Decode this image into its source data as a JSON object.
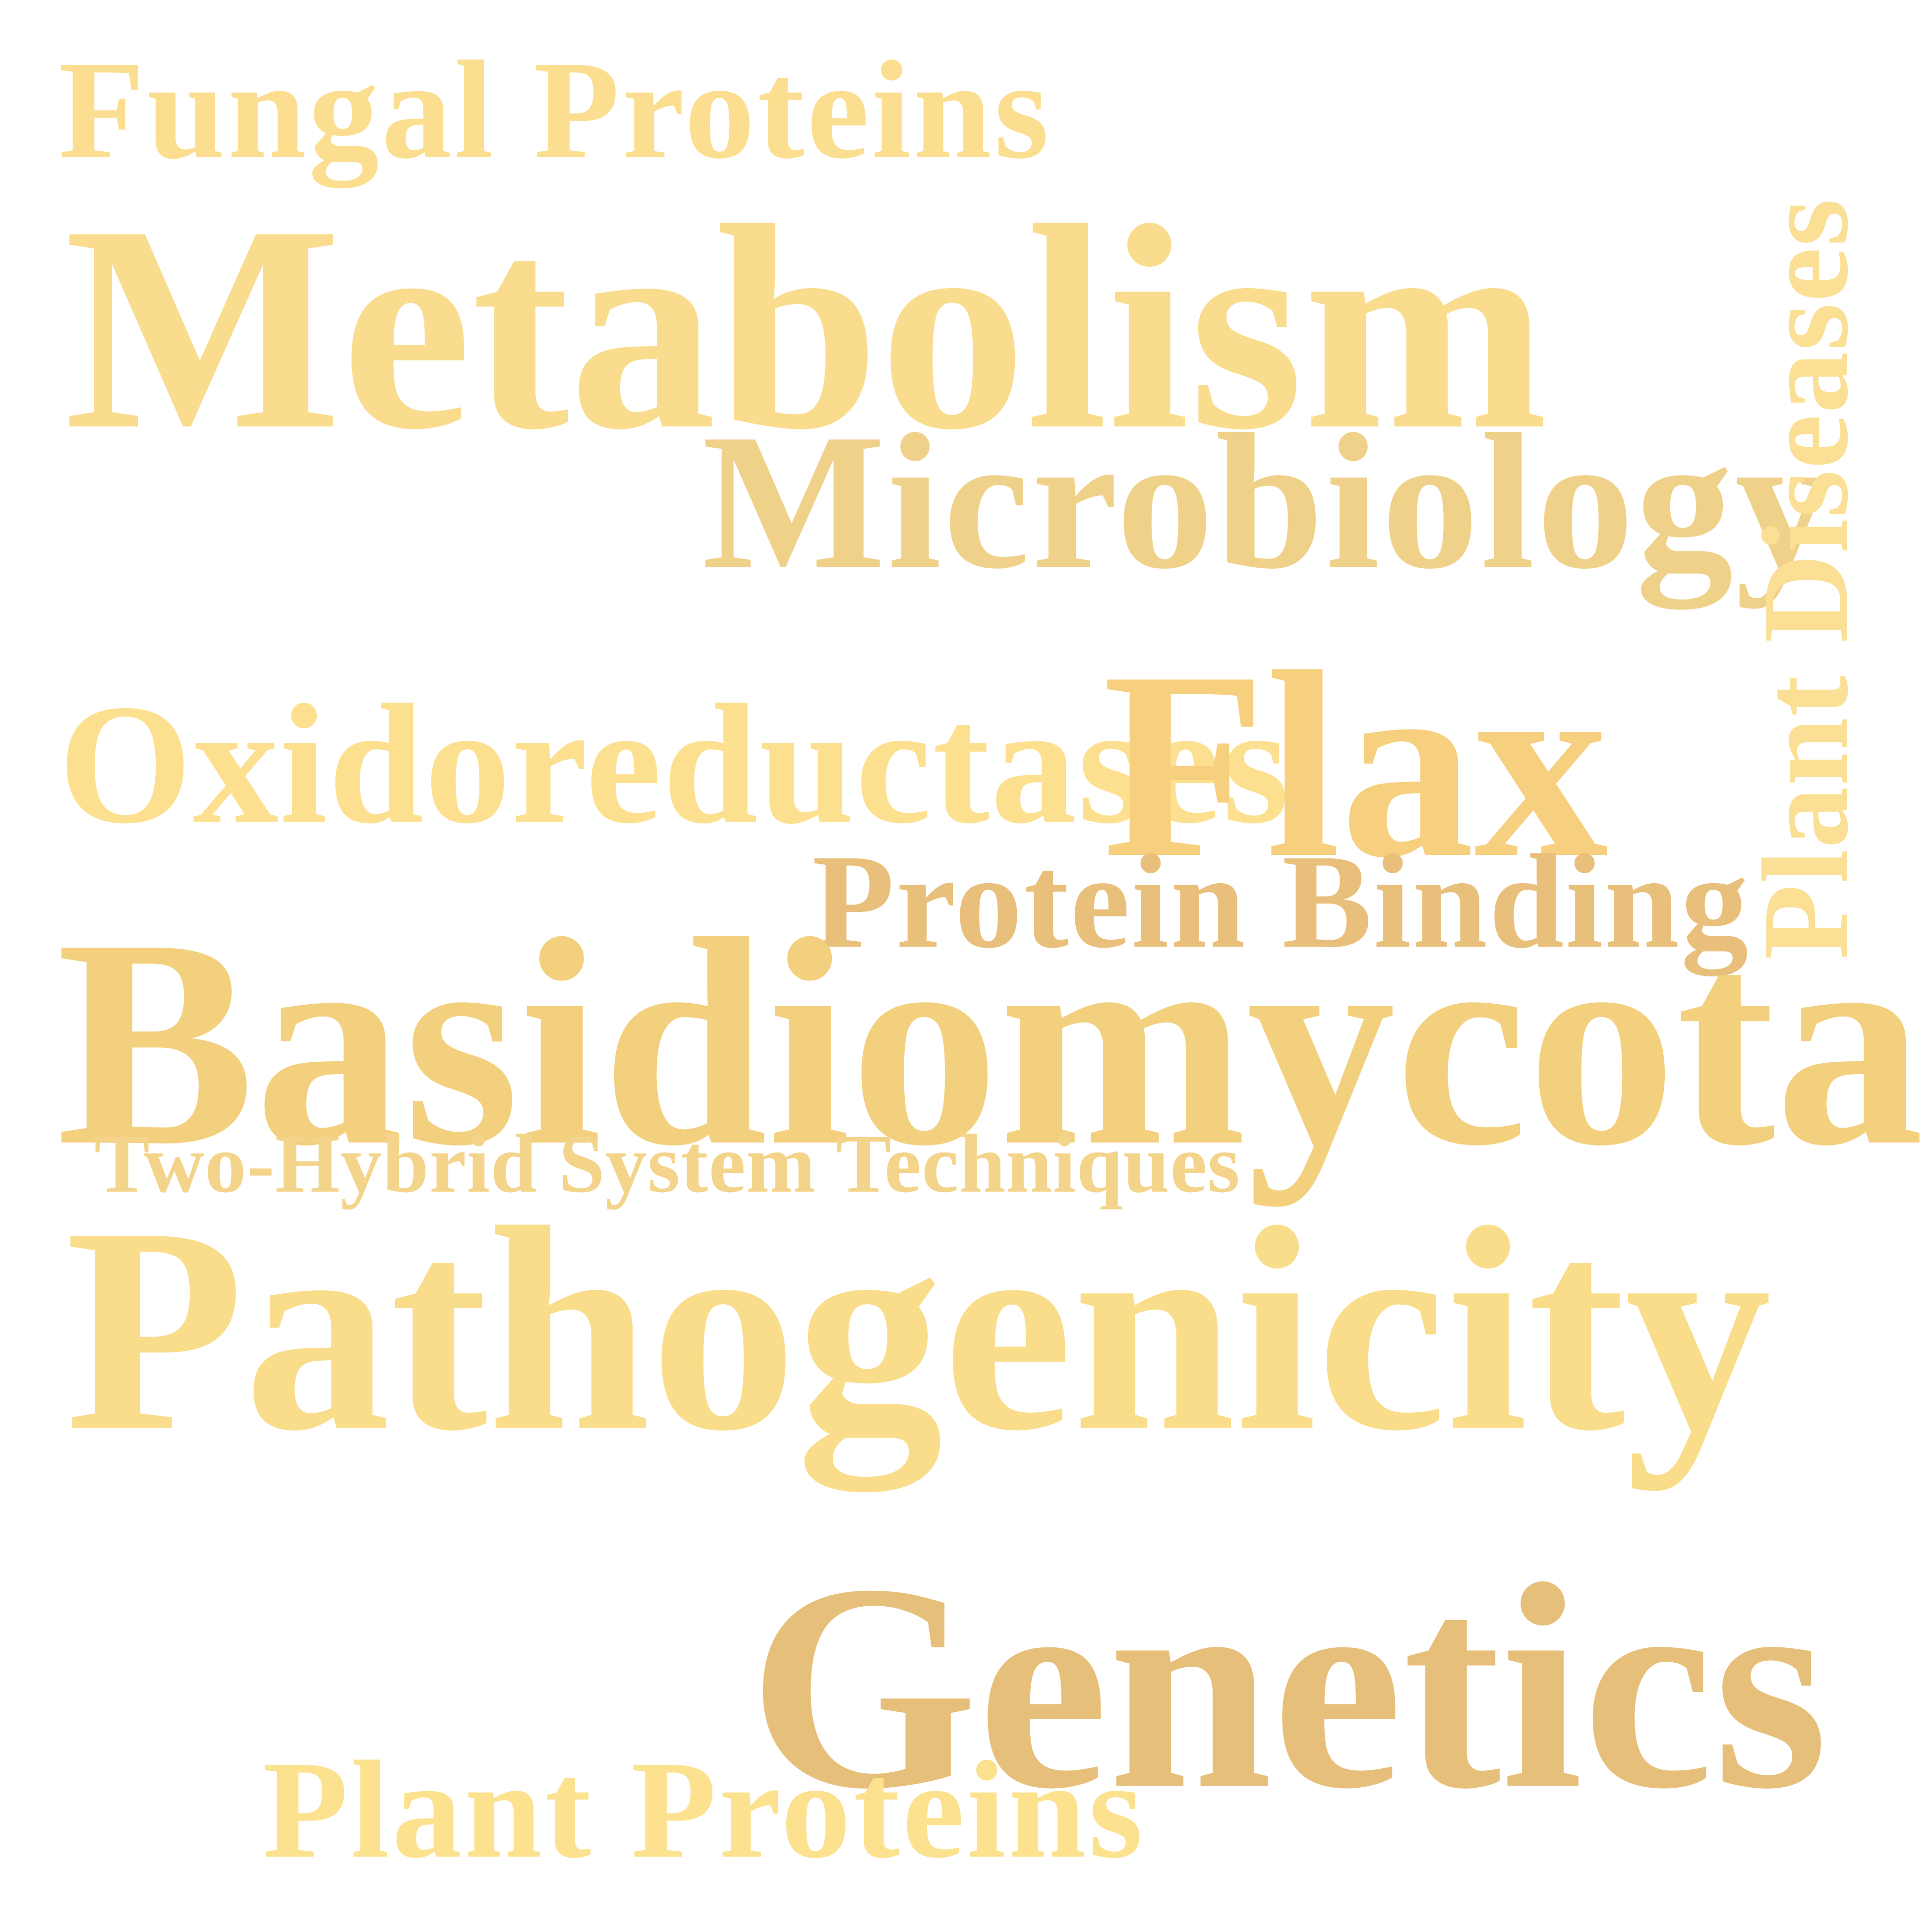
{
  "word_cloud": {
    "words": {
      "fungal_proteins": {
        "text": "Fungal Proteins",
        "color": "#FBDE8F"
      },
      "metabolism": {
        "text": "Metabolism",
        "color": "#F9DC8D"
      },
      "microbiology": {
        "text": "Microbiology",
        "color": "#F0D18A"
      },
      "plant_diseases": {
        "text": "Plant Diseases",
        "color": "#FADF94"
      },
      "oxidoreductases": {
        "text": "Oxidoreductases",
        "color": "#FDE08F"
      },
      "flax": {
        "text": "Flax",
        "color": "#F6D07E"
      },
      "protein_binding": {
        "text": "Protein Binding",
        "color": "#E8C07B"
      },
      "basidiomycota": {
        "text": "Basidiomycota",
        "color": "#F3D07E"
      },
      "two_hybrid": {
        "text": "Two-Hybrid System Techniques",
        "color": "#F3D48A"
      },
      "pathogenicity": {
        "text": "Pathogenicity",
        "color": "#F9DD8A"
      },
      "genetics": {
        "text": "Genetics",
        "color": "#E6BF7A"
      },
      "plant_proteins": {
        "text": "Plant Proteins",
        "color": "#FCE18F"
      }
    },
    "background_color": "#FFFFFF"
  }
}
